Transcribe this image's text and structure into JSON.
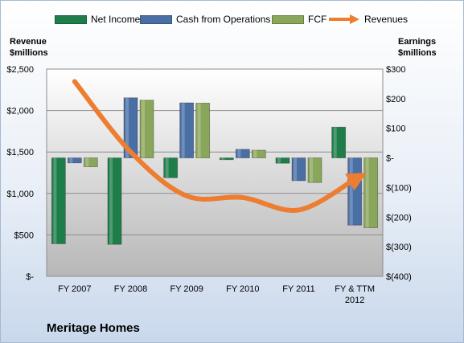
{
  "chart_data": {
    "type": "bar",
    "company": "Meritage Homes",
    "categories": [
      "FY 2007",
      "FY 2008",
      "FY 2009",
      "FY 2010",
      "FY 2011",
      "FY & TTM\n2012"
    ],
    "series": [
      {
        "name": "Net Income",
        "axis": "right",
        "color": "#1e7e4a",
        "values": [
          -290,
          -292,
          -67,
          -6,
          -18,
          104
        ]
      },
      {
        "name": "Cash from Operations",
        "axis": "right",
        "color": "#4a6fa5",
        "values": [
          -17,
          203,
          186,
          29,
          -77,
          -227
        ]
      },
      {
        "name": "FCF",
        "axis": "right",
        "color": "#8aa65a",
        "values": [
          -30,
          195,
          185,
          26,
          -83,
          -236
        ]
      },
      {
        "name": "Revenues",
        "axis": "left",
        "type": "line",
        "color": "#ed7d31",
        "values": [
          2350,
          1500,
          970,
          950,
          800,
          1170
        ]
      }
    ],
    "left_axis": {
      "label": "Revenue\n$millions",
      "min": 0,
      "max": 2500,
      "ticks": [
        "$-",
        "$500",
        "$1,000",
        "$1,500",
        "$2,000",
        "$2,500"
      ]
    },
    "right_axis": {
      "label": "Earnings\n$millions",
      "min": -400,
      "max": 300,
      "ticks": [
        "$(400)",
        "$(300)",
        "$(200)",
        "$(100)",
        "$-",
        "$100",
        "$200",
        "$300"
      ]
    },
    "grid": true,
    "legend_position": "top"
  }
}
